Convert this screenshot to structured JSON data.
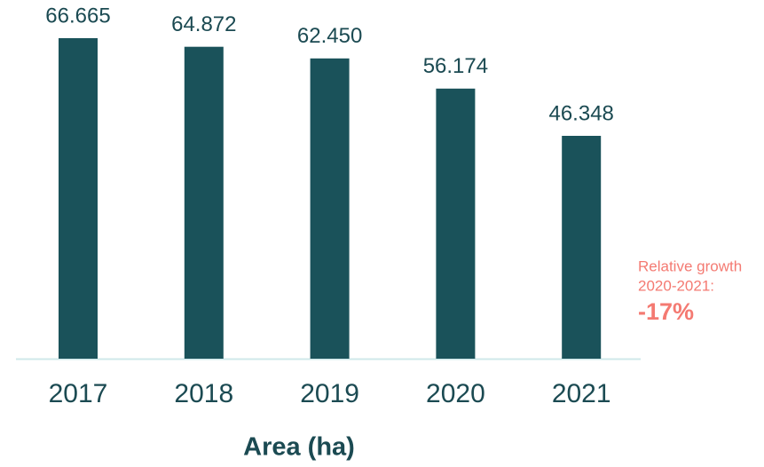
{
  "chart_data": {
    "type": "bar",
    "x_label": "Area (ha)",
    "categories": [
      "2017",
      "2018",
      "2019",
      "2020",
      "2021"
    ],
    "values": [
      66665,
      64872,
      62450,
      56174,
      46348
    ],
    "value_labels": [
      "66.665",
      "64.872",
      "62.450",
      "56.174",
      "46.348"
    ],
    "color": "#1a525a",
    "ylim": [
      0,
      74600
    ],
    "annotation": {
      "lines": [
        "Relative growth",
        "2020-2021:"
      ],
      "highlight": "-17%",
      "color": "#f47a72"
    }
  }
}
